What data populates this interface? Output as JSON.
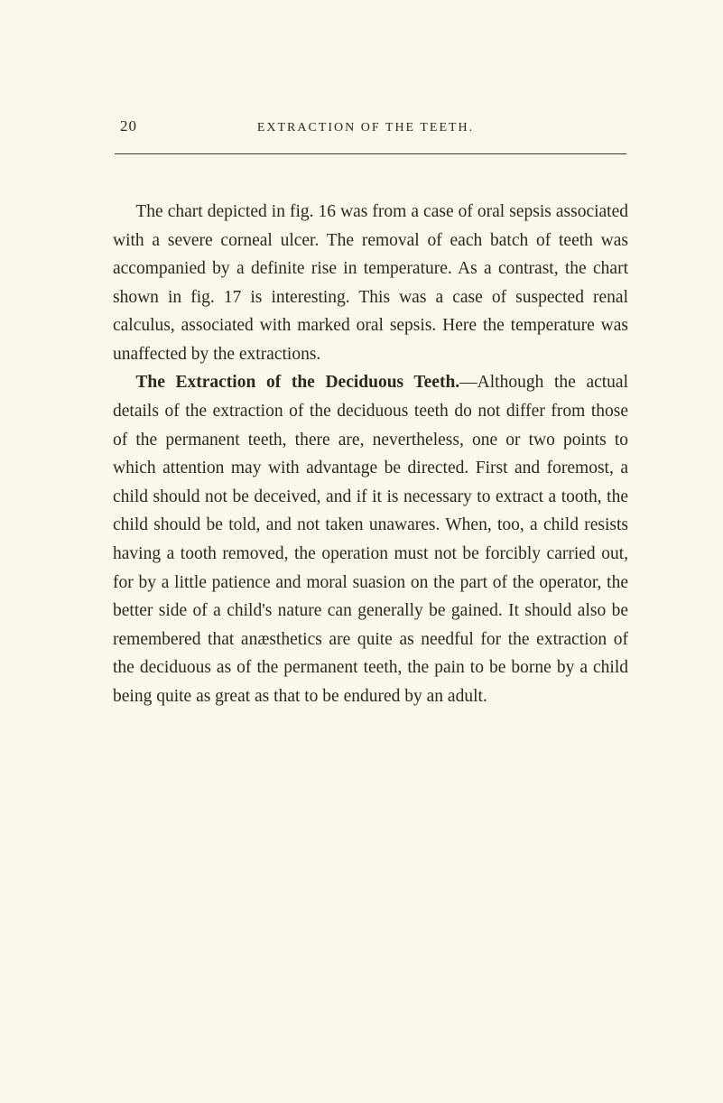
{
  "page": {
    "number": "20",
    "running_title": "EXTRACTION OF THE TEETH.",
    "background_color": "#faf8e8",
    "text_color": "#2a2a1a",
    "rule_color": "#3a3a2a",
    "body_fontsize": 19.5,
    "line_height": 1.62,
    "paragraphs": {
      "para1": "The chart depicted in fig. 16 was from a case of oral sepsis associated with a severe corneal ulcer. The removal of each batch of teeth was accompanied by a definite rise in temperature. As a contrast, the chart shown in fig. 17 is interesting. This was a case of suspected renal calculus, associated with marked oral sepsis. Here the temperature was unaffected by the extractions.",
      "para2_head": "The Extraction of the Deciduous Teeth.",
      "para2_body": "—Although the actual details of the extraction of the deciduous teeth do not differ from those of the permanent teeth, there are, nevertheless, one or two points to which attention may with advantage be directed. First and foremost, a child should not be deceived, and if it is necessary to extract a tooth, the child should be told, and not taken unawares. When, too, a child resists having a tooth removed, the operation must not be forcibly carried out, for by a little patience and moral suasion on the part of the operator, the better side of a child's nature can generally be gained. It should also be remembered that anæsthetics are quite as needful for the extraction of the deciduous as of the permanent teeth, the pain to be borne by a child being quite as great as that to be endured by an adult."
    }
  }
}
